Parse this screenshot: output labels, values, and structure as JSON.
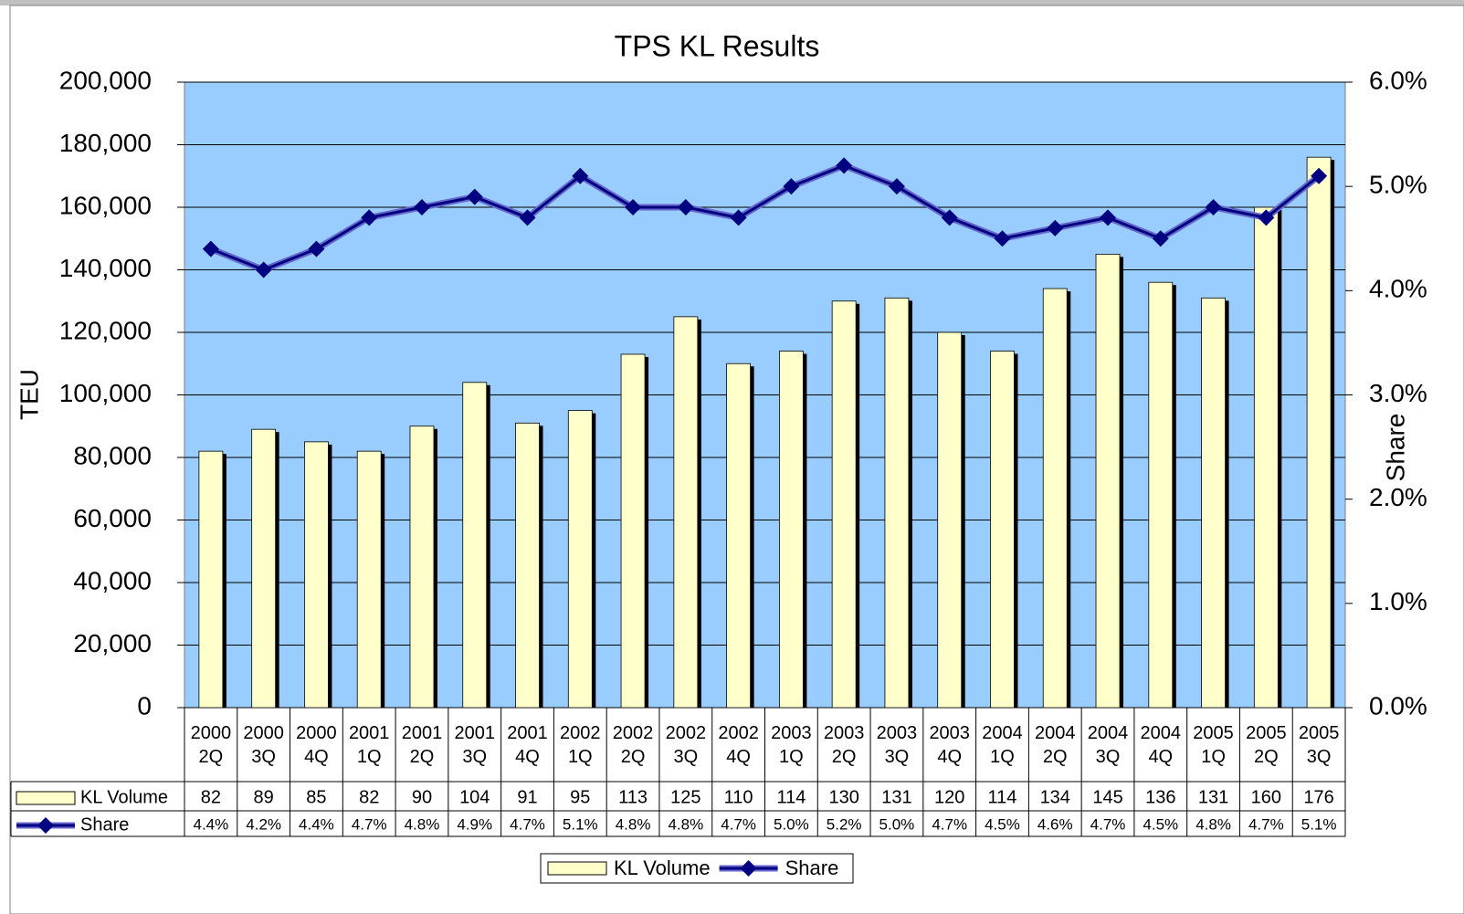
{
  "chart_data": {
    "type": "bar",
    "title": "TPS KL Results",
    "y_label": "TEU",
    "y2_label": "Share",
    "categories": [
      "2000 2Q",
      "2000 3Q",
      "2000 4Q",
      "2001 1Q",
      "2001 2Q",
      "2001 3Q",
      "2001 4Q",
      "2002 1Q",
      "2002 2Q",
      "2002 3Q",
      "2002 4Q",
      "2003 1Q",
      "2003 2Q",
      "2003 3Q",
      "2003 4Q",
      "2004 1Q",
      "2004 2Q",
      "2004 3Q",
      "2004 4Q",
      "2005 1Q",
      "2005 2Q",
      "2005 3Q"
    ],
    "series": [
      {
        "name": "KL Volume",
        "type": "bar",
        "color": "#ffffcc",
        "values": [
          82000,
          89000,
          85000,
          82000,
          90000,
          104000,
          91000,
          95000,
          113000,
          125000,
          110000,
          114000,
          130000,
          131000,
          120000,
          114000,
          134000,
          145000,
          136000,
          131000,
          160000,
          176000
        ],
        "value_labels": [
          "82",
          "89",
          "85",
          "82",
          "90",
          "104",
          "91",
          "95",
          "113",
          "125",
          "110",
          "114",
          "130",
          "131",
          "120",
          "114",
          "134",
          "145",
          "136",
          "131",
          "160",
          "176"
        ]
      },
      {
        "name": "Share",
        "type": "line",
        "axis": "y2",
        "color": "#000080",
        "values": [
          4.4,
          4.2,
          4.4,
          4.7,
          4.8,
          4.9,
          4.7,
          5.1,
          4.8,
          4.8,
          4.7,
          5.0,
          5.2,
          5.0,
          4.7,
          4.5,
          4.6,
          4.7,
          4.5,
          4.8,
          4.7,
          5.1
        ],
        "value_labels": [
          "4.4%",
          "4.2%",
          "4.4%",
          "4.7%",
          "4.8%",
          "4.9%",
          "4.7%",
          "5.1%",
          "4.8%",
          "4.8%",
          "4.7%",
          "5.0%",
          "5.2%",
          "5.0%",
          "4.7%",
          "4.5%",
          "4.6%",
          "4.7%",
          "4.5%",
          "4.8%",
          "4.7%",
          "5.1%"
        ]
      }
    ],
    "ylim": [
      0,
      200000
    ],
    "yticks": [
      0,
      {
        "value": 20000,
        "label": "20,000"
      },
      {
        "value": 40000,
        "label": "40,000"
      },
      {
        "value": 60000,
        "label": "60,000"
      },
      {
        "value": 80000,
        "label": "80,000"
      },
      {
        "value": 100000,
        "label": "100,000"
      },
      {
        "value": 120000,
        "label": "120,000"
      },
      {
        "value": 140000,
        "label": "140,000"
      },
      {
        "value": 160000,
        "label": "160,000"
      },
      {
        "value": 180000,
        "label": "180,000"
      },
      {
        "value": 200000,
        "label": "200,000"
      }
    ],
    "y2lim": [
      0,
      6
    ],
    "y2ticks": [
      {
        "value": 0,
        "label": "0.0%"
      },
      {
        "value": 1,
        "label": "1.0%"
      },
      {
        "value": 2,
        "label": "2.0%"
      },
      {
        "value": 3,
        "label": "3.0%"
      },
      {
        "value": 4,
        "label": "4.0%"
      },
      {
        "value": 5,
        "label": "5.0%"
      },
      {
        "value": 6,
        "label": "6.0%"
      }
    ],
    "grid": true,
    "plot_background": "#99ccff",
    "legend": "bottom"
  }
}
